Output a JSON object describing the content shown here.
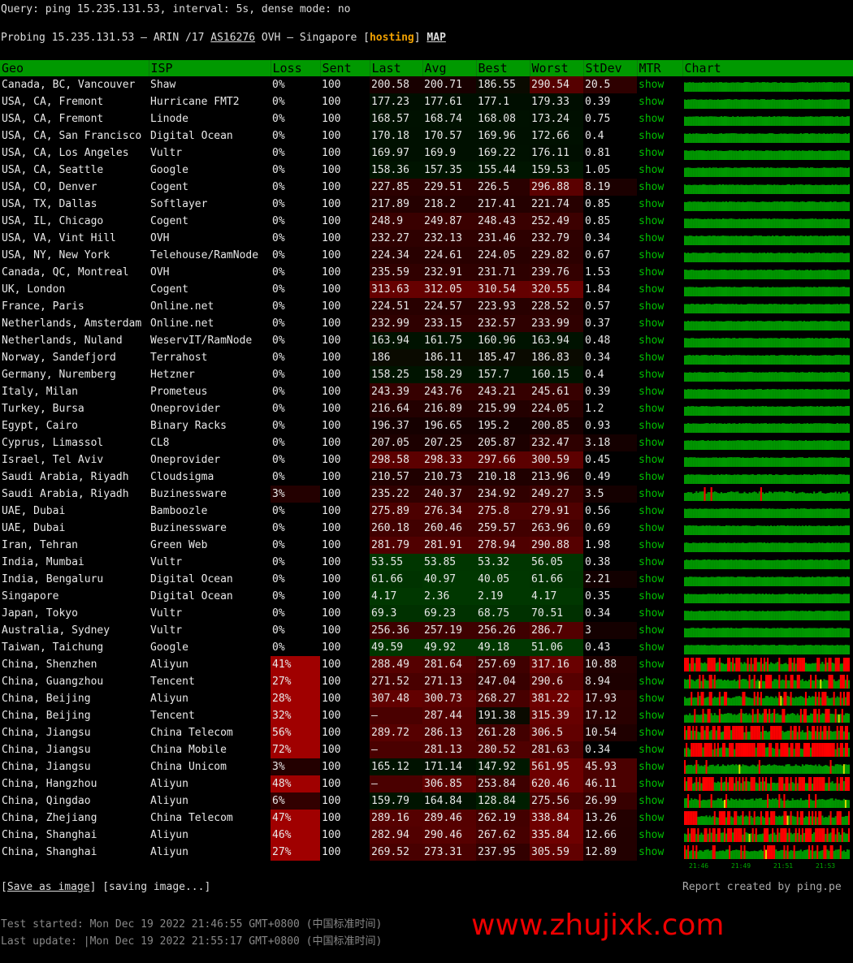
{
  "query": "Query: ping 15.235.131.53, interval: 5s, dense mode: no",
  "probe": {
    "prefix": "Probing 15.235.131.53 — ARIN /17 ",
    "asn": "AS16276",
    "mid": " OVH — Singapore [",
    "tag": "hosting",
    "close": "] ",
    "map": "MAP"
  },
  "headers": [
    "Geo",
    "ISP",
    "Loss",
    "Sent",
    "Last",
    "Avg",
    "Best",
    "Worst",
    "StDev",
    "MTR",
    "Chart"
  ],
  "rows": [
    [
      "Canada, BC, Vancouver",
      "Shaw",
      "0%",
      "100",
      "200.58",
      "200.71",
      "186.55",
      "290.54",
      "20.5",
      "show"
    ],
    [
      "USA, CA, Fremont",
      "Hurricane FMT2",
      "0%",
      "100",
      "177.23",
      "177.61",
      "177.1",
      "179.33",
      "0.39",
      "show"
    ],
    [
      "USA, CA, Fremont",
      "Linode",
      "0%",
      "100",
      "168.57",
      "168.74",
      "168.08",
      "173.24",
      "0.75",
      "show"
    ],
    [
      "USA, CA, San Francisco",
      "Digital Ocean",
      "0%",
      "100",
      "170.18",
      "170.57",
      "169.96",
      "172.66",
      "0.4",
      "show"
    ],
    [
      "USA, CA, Los Angeles",
      "Vultr",
      "0%",
      "100",
      "169.97",
      "169.9",
      "169.22",
      "176.11",
      "0.81",
      "show"
    ],
    [
      "USA, CA, Seattle",
      "Google",
      "0%",
      "100",
      "158.36",
      "157.35",
      "155.44",
      "159.53",
      "1.05",
      "show"
    ],
    [
      "USA, CO, Denver",
      "Cogent",
      "0%",
      "100",
      "227.85",
      "229.51",
      "226.5",
      "296.88",
      "8.19",
      "show"
    ],
    [
      "USA, TX, Dallas",
      "Softlayer",
      "0%",
      "100",
      "217.89",
      "218.2",
      "217.41",
      "221.74",
      "0.85",
      "show"
    ],
    [
      "USA, IL, Chicago",
      "Cogent",
      "0%",
      "100",
      "248.9",
      "249.87",
      "248.43",
      "252.49",
      "0.85",
      "show"
    ],
    [
      "USA, VA, Vint Hill",
      "OVH",
      "0%",
      "100",
      "232.27",
      "232.13",
      "231.46",
      "232.79",
      "0.34",
      "show"
    ],
    [
      "USA, NY, New York",
      "Telehouse/RamNode",
      "0%",
      "100",
      "224.34",
      "224.61",
      "224.05",
      "229.82",
      "0.67",
      "show"
    ],
    [
      "Canada, QC, Montreal",
      "OVH",
      "0%",
      "100",
      "235.59",
      "232.91",
      "231.71",
      "239.76",
      "1.53",
      "show"
    ],
    [
      "UK, London",
      "Cogent",
      "0%",
      "100",
      "313.63",
      "312.05",
      "310.54",
      "320.55",
      "1.84",
      "show"
    ],
    [
      "France, Paris",
      "Online.net",
      "0%",
      "100",
      "224.51",
      "224.57",
      "223.93",
      "228.52",
      "0.57",
      "show"
    ],
    [
      "Netherlands, Amsterdam",
      "Online.net",
      "0%",
      "100",
      "232.99",
      "233.15",
      "232.57",
      "233.99",
      "0.37",
      "show"
    ],
    [
      "Netherlands, Nuland",
      "WeservIT/RamNode",
      "0%",
      "100",
      "163.94",
      "161.75",
      "160.96",
      "163.94",
      "0.48",
      "show"
    ],
    [
      "Norway, Sandefjord",
      "Terrahost",
      "0%",
      "100",
      "186",
      "186.11",
      "185.47",
      "186.83",
      "0.34",
      "show"
    ],
    [
      "Germany, Nuremberg",
      "Hetzner",
      "0%",
      "100",
      "158.25",
      "158.29",
      "157.7",
      "160.15",
      "0.4",
      "show"
    ],
    [
      "Italy, Milan",
      "Prometeus",
      "0%",
      "100",
      "243.39",
      "243.76",
      "243.21",
      "245.61",
      "0.39",
      "show"
    ],
    [
      "Turkey, Bursa",
      "Oneprovider",
      "0%",
      "100",
      "216.64",
      "216.89",
      "215.99",
      "224.05",
      "1.2",
      "show"
    ],
    [
      "Egypt, Cairo",
      "Binary Racks",
      "0%",
      "100",
      "196.37",
      "196.65",
      "195.2",
      "200.85",
      "0.93",
      "show"
    ],
    [
      "Cyprus, Limassol",
      "CL8",
      "0%",
      "100",
      "207.05",
      "207.25",
      "205.87",
      "232.47",
      "3.18",
      "show"
    ],
    [
      "Israel, Tel Aviv",
      "Oneprovider",
      "0%",
      "100",
      "298.58",
      "298.33",
      "297.66",
      "300.59",
      "0.45",
      "show"
    ],
    [
      "Saudi Arabia, Riyadh",
      "Cloudsigma",
      "0%",
      "100",
      "210.57",
      "210.73",
      "210.18",
      "213.96",
      "0.49",
      "show"
    ],
    [
      "Saudi Arabia, Riyadh",
      "Buzinessware",
      "3%",
      "100",
      "235.22",
      "240.37",
      "234.92",
      "249.27",
      "3.5",
      "show"
    ],
    [
      "UAE, Dubai",
      "Bamboozle",
      "0%",
      "100",
      "275.89",
      "276.34",
      "275.8",
      "279.91",
      "0.56",
      "show"
    ],
    [
      "UAE, Dubai",
      "Buzinessware",
      "0%",
      "100",
      "260.18",
      "260.46",
      "259.57",
      "263.96",
      "0.69",
      "show"
    ],
    [
      "Iran, Tehran",
      "Green Web",
      "0%",
      "100",
      "281.79",
      "281.91",
      "278.94",
      "290.88",
      "1.98",
      "show"
    ],
    [
      "India, Mumbai",
      "Vultr",
      "0%",
      "100",
      "53.55",
      "53.85",
      "53.32",
      "56.05",
      "0.38",
      "show"
    ],
    [
      "India, Bengaluru",
      "Digital Ocean",
      "0%",
      "100",
      "61.66",
      "40.97",
      "40.05",
      "61.66",
      "2.21",
      "show"
    ],
    [
      "Singapore",
      "Digital Ocean",
      "0%",
      "100",
      "4.17",
      "2.36",
      "2.19",
      "4.17",
      "0.35",
      "show"
    ],
    [
      "Japan, Tokyo",
      "Vultr",
      "0%",
      "100",
      "69.3",
      "69.23",
      "68.75",
      "70.51",
      "0.34",
      "show"
    ],
    [
      "Australia, Sydney",
      "Vultr",
      "0%",
      "100",
      "256.36",
      "257.19",
      "256.26",
      "286.7",
      "3",
      "show"
    ],
    [
      "Taiwan, Taichung",
      "Google",
      "0%",
      "100",
      "49.59",
      "49.92",
      "49.18",
      "51.06",
      "0.43",
      "show"
    ],
    [
      "China, Shenzhen",
      "Aliyun",
      "41%",
      "100",
      "288.49",
      "281.64",
      "257.69",
      "317.16",
      "10.88",
      "show"
    ],
    [
      "China, Guangzhou",
      "Tencent",
      "27%",
      "100",
      "271.52",
      "271.13",
      "247.04",
      "290.6",
      "8.94",
      "show"
    ],
    [
      "China, Beijing",
      "Aliyun",
      "28%",
      "100",
      "307.48",
      "300.73",
      "268.27",
      "381.22",
      "17.93",
      "show"
    ],
    [
      "China, Beijing",
      "Tencent",
      "32%",
      "100",
      "–",
      "287.44",
      "191.38",
      "315.39",
      "17.12",
      "show"
    ],
    [
      "China, Jiangsu",
      "China Telecom",
      "56%",
      "100",
      "289.72",
      "286.13",
      "261.28",
      "306.5",
      "10.54",
      "show"
    ],
    [
      "China, Jiangsu",
      "China Mobile",
      "72%",
      "100",
      "–",
      "281.13",
      "280.52",
      "281.63",
      "0.34",
      "show"
    ],
    [
      "China, Jiangsu",
      "China Unicom",
      "3%",
      "100",
      "165.12",
      "171.14",
      "147.92",
      "561.95",
      "45.93",
      "show"
    ],
    [
      "China, Hangzhou",
      "Aliyun",
      "48%",
      "100",
      "–",
      "306.85",
      "253.84",
      "620.46",
      "46.11",
      "show"
    ],
    [
      "China, Qingdao",
      "Aliyun",
      "6%",
      "100",
      "159.79",
      "164.84",
      "128.84",
      "275.56",
      "26.99",
      "show"
    ],
    [
      "China, Zhejiang",
      "China Telecom",
      "47%",
      "100",
      "289.16",
      "289.46",
      "262.19",
      "338.84",
      "13.26",
      "show"
    ],
    [
      "China, Shanghai",
      "Aliyun",
      "46%",
      "100",
      "282.94",
      "290.46",
      "267.62",
      "335.84",
      "12.66",
      "show"
    ],
    [
      "China, Shanghai",
      "Aliyun",
      "27%",
      "100",
      "269.52",
      "273.31",
      "237.95",
      "305.59",
      "12.89",
      "show"
    ]
  ],
  "chart_times": [
    "21:46",
    "21:49",
    "21:51",
    "21:53"
  ],
  "footer": {
    "save": "Save as image",
    "saving": "[saving image...]",
    "report": "Report created by ping.pe",
    "started": "Test started: Mon Dec 19 2022 21:46:55 GMT+0800 (中国标准时间)",
    "updated": "Last update: |Mon Dec 19 2022 21:55:17 GMT+0800 (中国标准时间)"
  },
  "watermark": "www.zhujixk.com",
  "colors": {
    "header": "#009900",
    "ok": "#009900",
    "loss": "#ff0000",
    "spike": "#dddd00",
    "mtr": "#00c000",
    "hosting": "#f0a000"
  }
}
